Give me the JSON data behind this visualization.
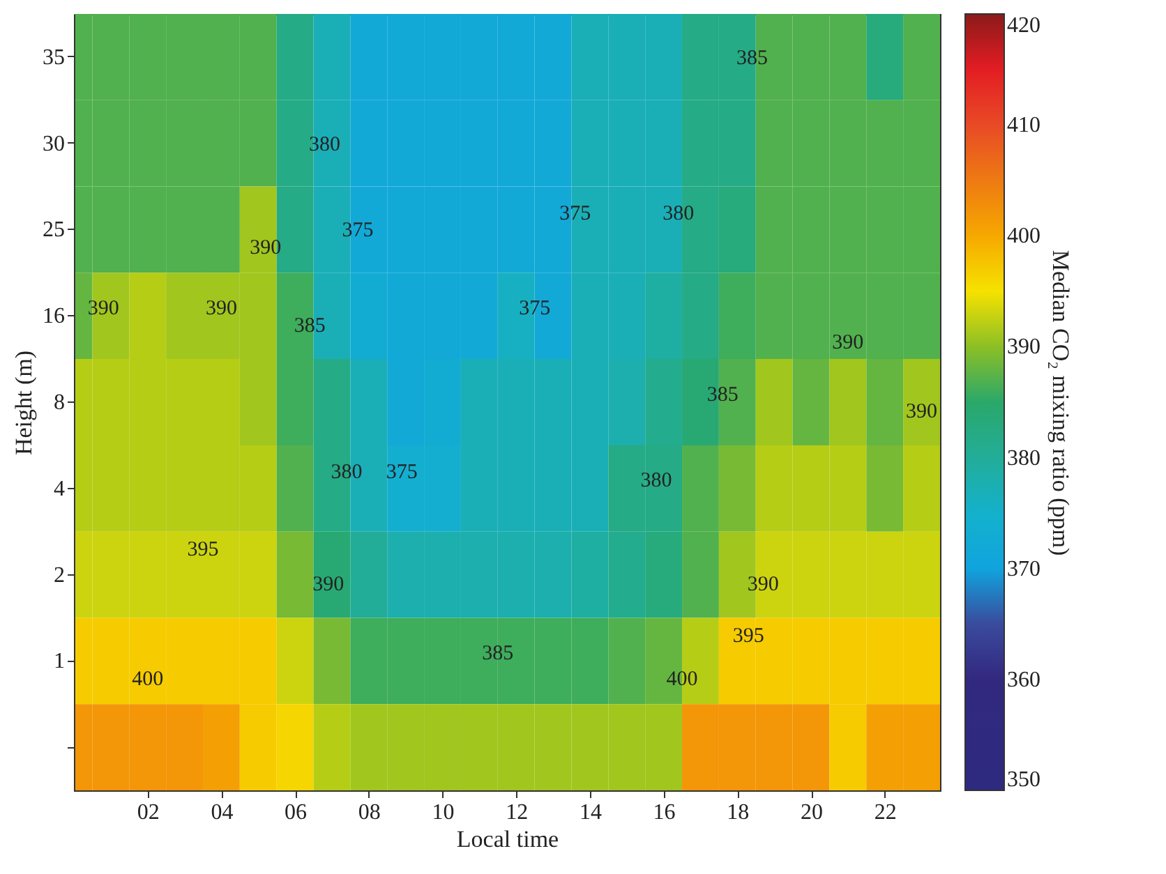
{
  "chart_data": {
    "type": "heatmap",
    "xlabel": "Local time",
    "ylabel": "Height (m)",
    "clabel": "Median CO₂ mixing ratio (ppm)",
    "x": [
      0,
      1,
      2,
      3,
      4,
      5,
      6,
      7,
      8,
      9,
      10,
      11,
      12,
      13,
      14,
      15,
      16,
      17,
      18,
      19,
      20,
      21,
      22,
      23
    ],
    "xlim": [
      0,
      23.5
    ],
    "xticks": [
      {
        "value": 2,
        "label": "02"
      },
      {
        "value": 4,
        "label": "04"
      },
      {
        "value": 6,
        "label": "06"
      },
      {
        "value": 8,
        "label": "08"
      },
      {
        "value": 10,
        "label": "10"
      },
      {
        "value": 12,
        "label": "12"
      },
      {
        "value": 14,
        "label": "14"
      },
      {
        "value": 16,
        "label": "16"
      },
      {
        "value": 18,
        "label": "18"
      },
      {
        "value": 20,
        "label": "20"
      },
      {
        "value": 22,
        "label": "22"
      }
    ],
    "y_categories": [
      "35",
      "30",
      "25",
      "16",
      "8",
      "4",
      "2",
      "1",
      null
    ],
    "cells": [
      [
        387,
        387,
        387,
        387,
        387,
        387,
        382,
        377,
        372,
        372,
        372,
        372,
        372,
        372,
        377,
        377,
        377,
        382,
        382,
        387,
        387,
        387,
        383,
        387
      ],
      [
        387,
        387,
        387,
        387,
        387,
        387,
        382,
        377,
        372,
        372,
        372,
        372,
        372,
        372,
        377,
        377,
        377,
        382,
        382,
        387,
        387,
        387,
        387,
        387
      ],
      [
        387,
        387,
        387,
        387,
        387,
        391,
        382,
        377,
        372,
        372,
        372,
        372,
        372,
        372,
        377,
        377,
        377,
        382,
        383,
        387,
        387,
        387,
        387,
        387
      ],
      [
        388,
        391,
        392,
        391,
        391,
        391,
        386,
        377,
        373,
        372,
        372,
        372,
        376,
        372,
        377,
        377,
        379,
        382,
        386,
        387,
        387,
        387,
        387,
        387
      ],
      [
        392,
        392,
        392,
        392,
        392,
        391,
        386,
        382,
        377,
        372,
        373,
        377,
        377,
        377,
        377,
        378,
        381,
        384,
        387,
        391,
        388,
        391,
        388,
        391
      ],
      [
        392,
        392,
        392,
        392,
        392,
        392,
        387,
        382,
        377,
        374,
        374,
        377,
        377,
        377,
        377,
        382,
        382,
        387,
        389,
        392,
        392,
        392,
        389,
        392
      ],
      [
        393,
        393,
        393,
        393,
        393,
        393,
        389,
        384,
        380,
        378,
        378,
        378,
        378,
        378,
        379,
        381,
        383,
        387,
        391,
        393,
        393,
        393,
        393,
        393
      ],
      [
        397,
        397,
        397,
        397,
        397,
        397,
        393,
        389,
        386,
        386,
        386,
        386,
        386,
        386,
        386,
        387,
        388,
        392,
        397,
        397,
        397,
        397,
        397,
        397
      ],
      [
        402,
        402,
        402,
        402,
        401,
        397,
        396,
        392,
        391,
        391,
        391,
        391,
        391,
        391,
        391,
        391,
        391,
        402,
        402,
        402,
        402,
        397,
        401,
        401
      ]
    ],
    "clim": [
      350,
      420
    ],
    "cticks": [
      350,
      360,
      370,
      380,
      390,
      400,
      410,
      420
    ],
    "annotations": [
      "390",
      "390",
      "390",
      "380",
      "375",
      "385",
      "380",
      "375",
      "395",
      "400",
      "390",
      "385",
      "375",
      "375",
      "380",
      "385",
      "385",
      "380",
      "390",
      "395",
      "400",
      "390",
      "390"
    ]
  }
}
